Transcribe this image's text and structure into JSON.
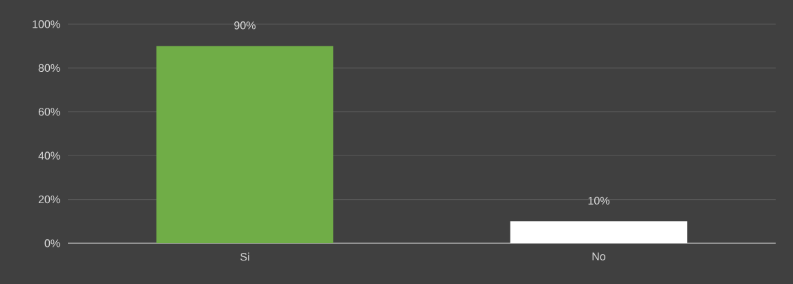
{
  "chart_data": {
    "type": "bar",
    "categories": [
      "Si",
      "No"
    ],
    "values": [
      90,
      10
    ],
    "colors": [
      "#70ad47",
      "#ffffff"
    ],
    "value_labels": [
      "90%",
      "10%"
    ],
    "ylim": [
      0,
      100
    ],
    "yticks": [
      {
        "value": 0,
        "label": "0%"
      },
      {
        "value": 20,
        "label": "20%"
      },
      {
        "value": 40,
        "label": "40%"
      },
      {
        "value": 60,
        "label": "60%"
      },
      {
        "value": 80,
        "label": "80%"
      },
      {
        "value": 100,
        "label": "100%"
      }
    ],
    "grid": "y"
  }
}
